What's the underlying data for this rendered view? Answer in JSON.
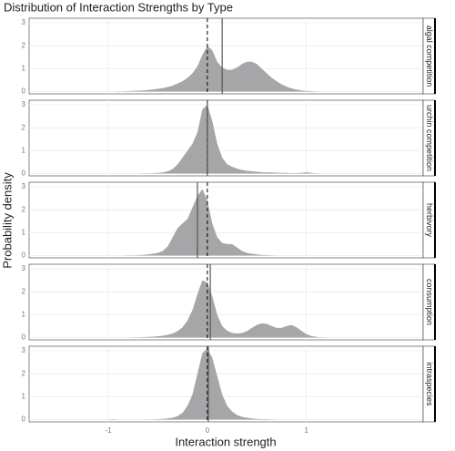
{
  "chart_data": {
    "type": "density",
    "title": "Distribution of Interaction Strengths by Type",
    "x_label": "Interaction strength",
    "y_label": "Probability density",
    "xlim": [
      -1.8,
      2.18
    ],
    "xticks": [
      -1,
      0,
      1
    ],
    "ylim": [
      -0.1,
      3.2
    ],
    "yticks": [
      0,
      1,
      2,
      3
    ],
    "grid": true,
    "color": "#a6a6a8",
    "reference_line": 0,
    "x": [
      -1,
      -0.95,
      -0.9,
      -0.85,
      -0.8,
      -0.75,
      -0.7,
      -0.65,
      -0.6,
      -0.55,
      -0.5,
      -0.45,
      -0.4,
      -0.35,
      -0.3,
      -0.25,
      -0.2,
      -0.15,
      -0.1,
      -0.05,
      0,
      0.05,
      0.1,
      0.15,
      0.2,
      0.25,
      0.3,
      0.35,
      0.4,
      0.45,
      0.5,
      0.55,
      0.6,
      0.65,
      0.7,
      0.75,
      0.8,
      0.85,
      0.9,
      0.95,
      1,
      1.05,
      1.1,
      1.15,
      1.2
    ],
    "panels": [
      {
        "name": "algal competition",
        "vline": 0.15,
        "values": [
          0,
          0,
          0.01,
          0.01,
          0.02,
          0.03,
          0.04,
          0.05,
          0.07,
          0.09,
          0.12,
          0.15,
          0.2,
          0.26,
          0.35,
          0.45,
          0.6,
          0.8,
          1.1,
          1.6,
          2.0,
          1.8,
          1.3,
          1.05,
          0.95,
          0.95,
          1.05,
          1.2,
          1.3,
          1.3,
          1.2,
          1.0,
          0.8,
          0.6,
          0.45,
          0.32,
          0.22,
          0.14,
          0.09,
          0.05,
          0.03,
          0.02,
          0.01,
          0,
          0
        ]
      },
      {
        "name": "urchin competition",
        "vline": 0,
        "values": [
          0,
          0,
          0,
          0,
          0,
          0,
          0,
          0.01,
          0.01,
          0.02,
          0.03,
          0.05,
          0.1,
          0.2,
          0.4,
          0.7,
          1.0,
          1.3,
          1.8,
          2.8,
          3.0,
          2.3,
          1.3,
          0.7,
          0.4,
          0.3,
          0.22,
          0.16,
          0.12,
          0.1,
          0.08,
          0.06,
          0.05,
          0.05,
          0.04,
          0.03,
          0.03,
          0.02,
          0.02,
          0.03,
          0.06,
          0.03,
          0.01,
          0,
          0
        ]
      },
      {
        "name": "herbivory",
        "vline": -0.1,
        "values": [
          0,
          0,
          0,
          0,
          0.01,
          0.01,
          0.02,
          0.03,
          0.05,
          0.08,
          0.12,
          0.2,
          0.4,
          0.8,
          1.2,
          1.4,
          1.6,
          2.1,
          2.6,
          2.9,
          2.4,
          1.4,
          0.8,
          0.55,
          0.5,
          0.5,
          0.35,
          0.2,
          0.12,
          0.08,
          0.05,
          0.03,
          0.02,
          0.01,
          0,
          0,
          0,
          0,
          0,
          0,
          0,
          0,
          0,
          0,
          0
        ]
      },
      {
        "name": "consumption",
        "vline": 0.03,
        "values": [
          0,
          0,
          0,
          0,
          0,
          0.01,
          0.01,
          0.02,
          0.03,
          0.04,
          0.06,
          0.08,
          0.12,
          0.18,
          0.28,
          0.45,
          0.75,
          1.2,
          1.9,
          2.5,
          2.4,
          1.8,
          1.0,
          0.5,
          0.3,
          0.2,
          0.18,
          0.2,
          0.28,
          0.42,
          0.55,
          0.62,
          0.6,
          0.5,
          0.42,
          0.42,
          0.5,
          0.55,
          0.45,
          0.3,
          0.15,
          0.07,
          0.03,
          0.01,
          0
        ]
      },
      {
        "name": "intraspecies",
        "vline": 0.01,
        "values": [
          0,
          0.02,
          0,
          0,
          0,
          0,
          0,
          0,
          0.01,
          0.01,
          0.02,
          0.03,
          0.05,
          0.08,
          0.15,
          0.3,
          0.6,
          1.1,
          2.0,
          2.9,
          3.1,
          2.7,
          1.9,
          1.1,
          0.6,
          0.35,
          0.2,
          0.12,
          0.08,
          0.05,
          0.03,
          0.02,
          0.02,
          0.01,
          0,
          0,
          0,
          0,
          0,
          0,
          0,
          0,
          0,
          0,
          0
        ]
      }
    ]
  }
}
